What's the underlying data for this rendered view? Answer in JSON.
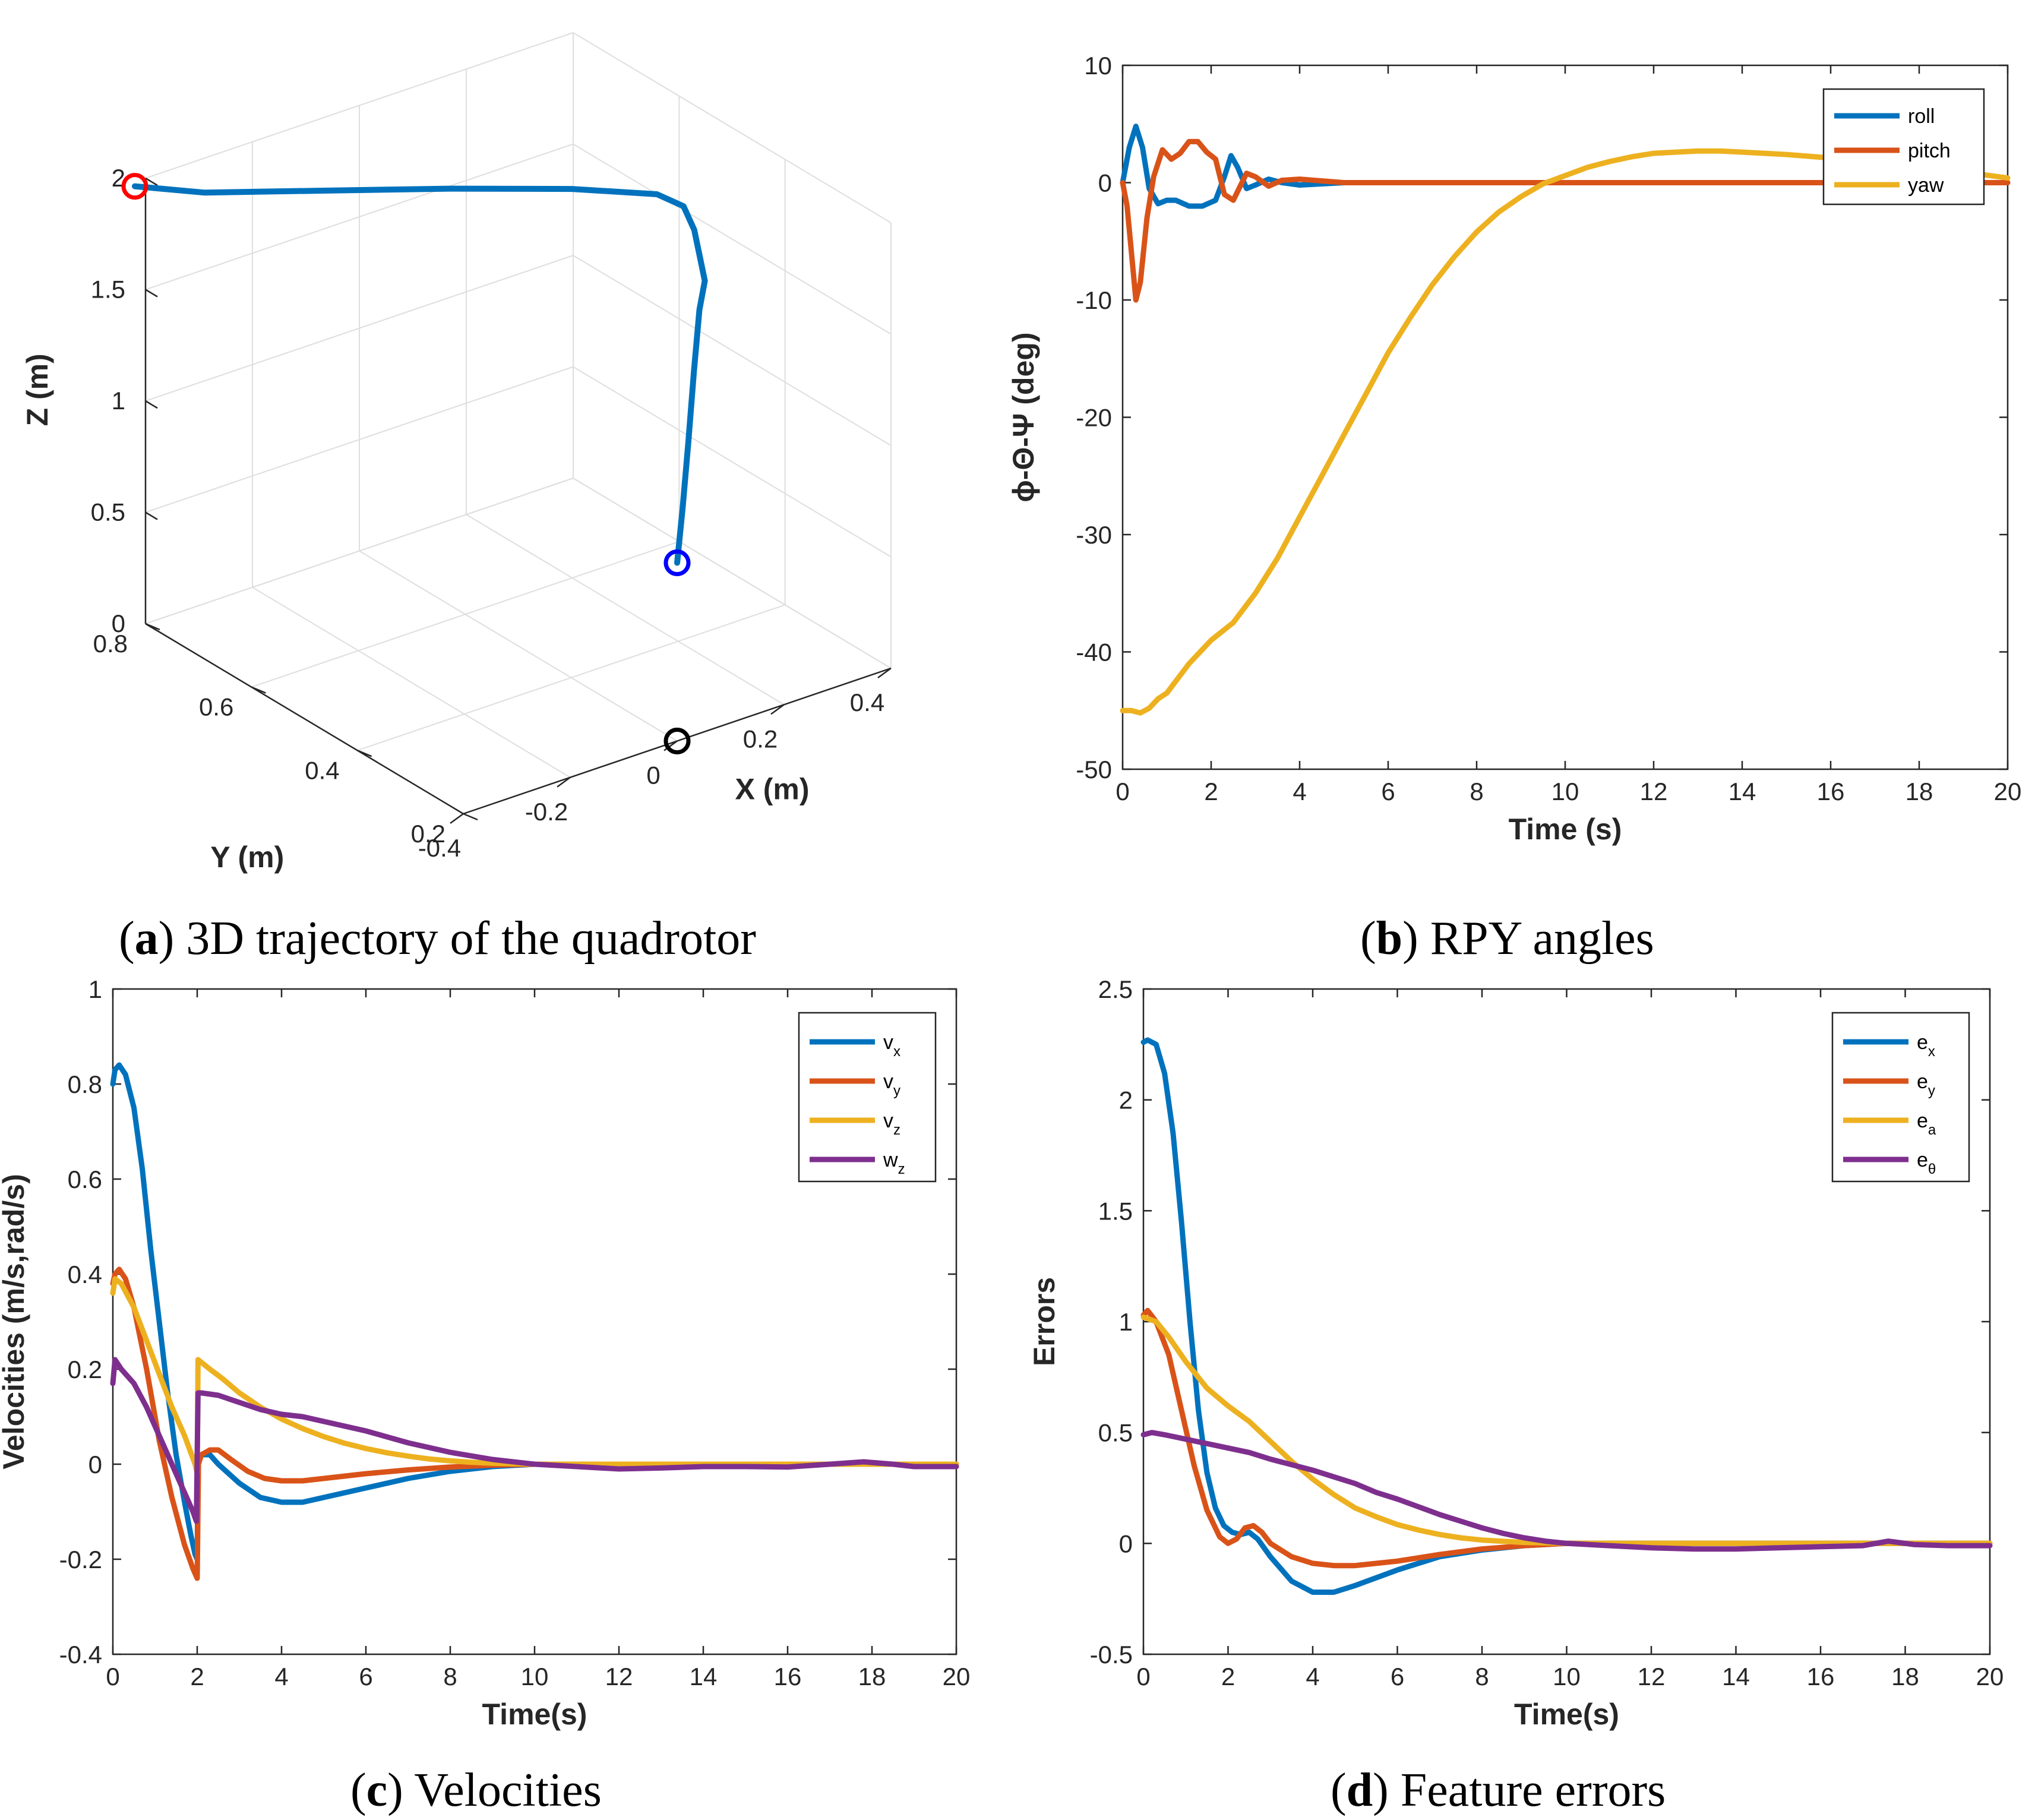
{
  "colors": {
    "blue": "#0072BD",
    "orange": "#D95319",
    "yellow": "#EDB120",
    "purple": "#7E2F8E",
    "red": "#FF0000",
    "darkblue": "#0000FF",
    "black": "#000000"
  },
  "captions": [
    {
      "letter": "a",
      "text": " 3D trajectory of the quadrotor"
    },
    {
      "letter": "b",
      "text": " RPY angles"
    },
    {
      "letter": "c",
      "text": " Velocities"
    },
    {
      "letter": "d",
      "text": " Feature errors"
    }
  ],
  "chart_data": [
    {
      "id": "a",
      "type": "line3d",
      "title": "3D trajectory of the quadrotor",
      "xlabel": "X (m)",
      "ylabel": "Y (m)",
      "zlabel": "Z (m)",
      "xlim": [
        -0.4,
        0.4
      ],
      "ylim": [
        0.2,
        0.8
      ],
      "zlim": [
        0,
        2
      ],
      "xticks": [
        "-0.4",
        "-0.2",
        "0",
        "0.2",
        "0.4"
      ],
      "yticks": [
        "0.2",
        "0.4",
        "0.6",
        "0.8"
      ],
      "zticks": [
        "0",
        "0.5",
        "1",
        "1.5",
        "2"
      ],
      "series": [
        {
          "name": "trajectory",
          "color": "blue",
          "x": [
            0.0,
            0.05,
            0.12,
            0.18,
            0.22,
            0.24,
            0.24,
            0.24,
            0.23,
            0.2,
            0.1,
            -0.05,
            -0.2,
            -0.35,
            -0.42
          ],
          "y": [
            0.2,
            0.24,
            0.3,
            0.35,
            0.38,
            0.39,
            0.4,
            0.41,
            0.42,
            0.44,
            0.5,
            0.58,
            0.66,
            0.74,
            0.8
          ],
          "z": [
            0.8,
            0.95,
            1.1,
            1.3,
            1.5,
            1.6,
            1.7,
            1.8,
            1.9,
            1.95,
            1.97,
            1.98,
            1.98,
            1.98,
            1.98
          ]
        }
      ],
      "markers": [
        {
          "name": "start",
          "color": "red",
          "x": -0.42,
          "y": 0.8,
          "z": 1.98
        },
        {
          "name": "end",
          "color": "darkblue",
          "x": 0.0,
          "y": 0.2,
          "z": 0.8
        },
        {
          "name": "target",
          "color": "black",
          "x": 0.0,
          "y": 0.2,
          "z": 0.0
        }
      ]
    },
    {
      "id": "b",
      "type": "line",
      "title": "RPY angles",
      "xlabel": "Time (s)",
      "ylabel": "ϕ-Θ-Ψ (deg)",
      "xlim": [
        0,
        20
      ],
      "ylim": [
        -50,
        10
      ],
      "xticks": [
        0,
        2,
        4,
        6,
        8,
        10,
        12,
        14,
        16,
        18,
        20
      ],
      "yticks": [
        -50,
        -40,
        -30,
        -20,
        -10,
        0,
        10
      ],
      "legend": "top-right",
      "series": [
        {
          "name": "roll",
          "color": "blue",
          "x": [
            0,
            0.15,
            0.3,
            0.45,
            0.6,
            0.8,
            1.0,
            1.2,
            1.5,
            1.8,
            2.1,
            2.3,
            2.45,
            2.6,
            2.8,
            3.0,
            3.3,
            3.6,
            4.0,
            5.0,
            8.0,
            20
          ],
          "y": [
            0,
            3.0,
            4.8,
            3.0,
            -0.5,
            -1.8,
            -1.5,
            -1.5,
            -2.0,
            -2.0,
            -1.5,
            0.5,
            2.3,
            1.3,
            -0.5,
            -0.2,
            0.3,
            0,
            -0.2,
            0,
            0,
            0
          ]
        },
        {
          "name": "pitch",
          "color": "orange",
          "x": [
            0,
            0.1,
            0.2,
            0.3,
            0.4,
            0.55,
            0.7,
            0.9,
            1.1,
            1.3,
            1.5,
            1.7,
            1.9,
            2.1,
            2.3,
            2.5,
            2.8,
            3.0,
            3.3,
            3.6,
            4.0,
            5.0,
            8.0,
            20
          ],
          "y": [
            0,
            -2.0,
            -6.0,
            -10.0,
            -8.5,
            -3.0,
            0.5,
            2.8,
            2.0,
            2.5,
            3.5,
            3.5,
            2.6,
            2.0,
            -1.0,
            -1.5,
            0.8,
            0.5,
            -0.3,
            0.2,
            0.3,
            0,
            0,
            0
          ]
        },
        {
          "name": "yaw",
          "color": "yellow",
          "x": [
            0,
            0.2,
            0.4,
            0.6,
            0.8,
            1.0,
            1.5,
            2.0,
            2.5,
            3.0,
            3.5,
            4.0,
            4.5,
            5.0,
            5.5,
            6.0,
            6.5,
            7.0,
            7.5,
            8.0,
            8.5,
            9.0,
            9.5,
            10.0,
            10.5,
            11.0,
            11.5,
            12.0,
            12.5,
            13.0,
            13.5,
            14.0,
            15.0,
            16.0,
            17.0,
            18.0,
            19.0,
            20.0
          ],
          "y": [
            -45.0,
            -45.0,
            -45.2,
            -44.8,
            -44.0,
            -43.5,
            -41.0,
            -39.0,
            -37.5,
            -35.0,
            -32.0,
            -28.5,
            -25.0,
            -21.5,
            -18.0,
            -14.5,
            -11.5,
            -8.7,
            -6.3,
            -4.2,
            -2.5,
            -1.2,
            -0.1,
            0.6,
            1.3,
            1.8,
            2.2,
            2.5,
            2.6,
            2.7,
            2.7,
            2.6,
            2.4,
            2.1,
            1.7,
            1.3,
            0.9,
            0.4
          ]
        }
      ]
    },
    {
      "id": "c",
      "type": "line",
      "title": "Velocities",
      "xlabel": "Time(s)",
      "ylabel": "Velocities (m/s,rad/s)",
      "xlim": [
        0,
        20
      ],
      "ylim": [
        -0.4,
        1
      ],
      "xticks": [
        0,
        2,
        4,
        6,
        8,
        10,
        12,
        14,
        16,
        18,
        20
      ],
      "yticks": [
        -0.4,
        -0.2,
        0,
        0.2,
        0.4,
        0.6,
        0.8,
        1
      ],
      "legend": "top-right",
      "series": [
        {
          "name": "v",
          "sub": "x",
          "color": "blue",
          "x": [
            0,
            0.05,
            0.15,
            0.3,
            0.5,
            0.7,
            0.9,
            1.1,
            1.3,
            1.5,
            1.7,
            1.85,
            1.95,
            2.0,
            2.02,
            2.1,
            2.3,
            2.5,
            3.0,
            3.5,
            4.0,
            4.5,
            5.0,
            6.0,
            7.0,
            8.0,
            9.0,
            10.0,
            12.0,
            20.0
          ],
          "y": [
            0.8,
            0.83,
            0.84,
            0.82,
            0.75,
            0.62,
            0.45,
            0.3,
            0.15,
            0.02,
            -0.08,
            -0.15,
            -0.19,
            -0.2,
            0.0,
            0.02,
            0.02,
            0.0,
            -0.04,
            -0.07,
            -0.08,
            -0.08,
            -0.07,
            -0.05,
            -0.03,
            -0.015,
            -0.005,
            0.0,
            0.0,
            0.0
          ]
        },
        {
          "name": "v",
          "sub": "y",
          "color": "orange",
          "x": [
            0,
            0.05,
            0.15,
            0.3,
            0.5,
            0.8,
            1.1,
            1.4,
            1.7,
            1.9,
            2.0,
            2.03,
            2.1,
            2.3,
            2.5,
            2.8,
            3.2,
            3.6,
            4.0,
            4.5,
            5.0,
            6.0,
            7.0,
            8.0,
            9.0,
            10.0,
            20.0
          ],
          "y": [
            0.38,
            0.4,
            0.41,
            0.39,
            0.33,
            0.2,
            0.05,
            -0.07,
            -0.17,
            -0.22,
            -0.24,
            0.0,
            0.02,
            0.03,
            0.03,
            0.01,
            -0.015,
            -0.03,
            -0.035,
            -0.035,
            -0.03,
            -0.02,
            -0.012,
            -0.006,
            -0.002,
            0.0,
            0.0
          ]
        },
        {
          "name": "v",
          "sub": "z",
          "color": "yellow",
          "x": [
            0,
            0.05,
            0.2,
            0.5,
            0.8,
            1.1,
            1.4,
            1.7,
            1.95,
            2.0,
            2.02,
            2.3,
            2.6,
            3.0,
            3.5,
            4.0,
            4.5,
            5.0,
            5.5,
            6.0,
            6.5,
            7.0,
            7.5,
            8.0,
            8.5,
            9.0,
            10.0,
            12.0,
            20.0
          ],
          "y": [
            0.36,
            0.39,
            0.38,
            0.33,
            0.26,
            0.19,
            0.12,
            0.06,
            0.0,
            -0.02,
            0.22,
            0.2,
            0.18,
            0.15,
            0.12,
            0.095,
            0.075,
            0.058,
            0.044,
            0.033,
            0.024,
            0.017,
            0.011,
            0.007,
            0.004,
            0.002,
            0.0,
            0.0,
            0.0
          ]
        },
        {
          "name": "w",
          "sub": "z",
          "color": "purple",
          "x": [
            0,
            0.05,
            0.2,
            0.5,
            0.8,
            1.1,
            1.4,
            1.7,
            1.9,
            1.98,
            2.02,
            2.1,
            2.5,
            3.0,
            3.5,
            4.0,
            4.5,
            5.0,
            6.0,
            7.0,
            8.0,
            9.0,
            10.0,
            11.0,
            12.0,
            13.0,
            14.0,
            15.0,
            16.0,
            17.0,
            17.8,
            18.5,
            19.0,
            20.0
          ],
          "y": [
            0.17,
            0.22,
            0.2,
            0.17,
            0.12,
            0.06,
            0.0,
            -0.06,
            -0.1,
            -0.12,
            0.15,
            0.15,
            0.145,
            0.13,
            0.115,
            0.105,
            0.1,
            0.09,
            0.07,
            0.045,
            0.025,
            0.01,
            0.0,
            -0.005,
            -0.01,
            -0.008,
            -0.005,
            -0.005,
            -0.006,
            0.0,
            0.005,
            0.0,
            -0.005,
            -0.005
          ]
        }
      ]
    },
    {
      "id": "d",
      "type": "line",
      "title": "Feature errors",
      "xlabel": "Time(s)",
      "ylabel": "Errors",
      "xlim": [
        0,
        20
      ],
      "ylim": [
        -0.5,
        2.5
      ],
      "xticks": [
        0,
        2,
        4,
        6,
        8,
        10,
        12,
        14,
        16,
        18,
        20
      ],
      "yticks": [
        -0.5,
        0,
        0.5,
        1,
        1.5,
        2,
        2.5
      ],
      "legend": "top-right",
      "series": [
        {
          "name": "e",
          "sub": "x",
          "color": "blue",
          "x": [
            0,
            0.1,
            0.3,
            0.5,
            0.7,
            0.9,
            1.1,
            1.3,
            1.5,
            1.7,
            1.9,
            2.1,
            2.3,
            2.5,
            2.7,
            3.0,
            3.5,
            4.0,
            4.5,
            5.0,
            6.0,
            7.0,
            8.0,
            9.0,
            10.0,
            12.0,
            20.0
          ],
          "y": [
            2.26,
            2.27,
            2.25,
            2.12,
            1.85,
            1.45,
            1.0,
            0.6,
            0.32,
            0.16,
            0.08,
            0.05,
            0.04,
            0.05,
            0.02,
            -0.06,
            -0.17,
            -0.22,
            -0.22,
            -0.19,
            -0.12,
            -0.06,
            -0.03,
            -0.01,
            0.0,
            0.0,
            0.0
          ]
        },
        {
          "name": "e",
          "sub": "y",
          "color": "orange",
          "x": [
            0,
            0.1,
            0.3,
            0.6,
            0.9,
            1.2,
            1.5,
            1.8,
            2.0,
            2.2,
            2.4,
            2.6,
            2.8,
            3.0,
            3.5,
            4.0,
            4.5,
            5.0,
            6.0,
            7.0,
            8.0,
            9.0,
            10.0,
            20.0
          ],
          "y": [
            1.03,
            1.05,
            1.0,
            0.85,
            0.6,
            0.35,
            0.15,
            0.03,
            0.0,
            0.02,
            0.07,
            0.08,
            0.05,
            0.0,
            -0.06,
            -0.09,
            -0.1,
            -0.1,
            -0.08,
            -0.05,
            -0.025,
            -0.01,
            0.0,
            0.0
          ]
        },
        {
          "name": "e",
          "sub": "a",
          "color": "yellow",
          "x": [
            0,
            0.3,
            0.6,
            1.0,
            1.5,
            2.0,
            2.5,
            3.0,
            3.5,
            4.0,
            4.5,
            5.0,
            5.5,
            6.0,
            6.5,
            7.0,
            7.5,
            8.0,
            9.0,
            10.0,
            12.0,
            20.0
          ],
          "y": [
            1.02,
            1.0,
            0.93,
            0.82,
            0.7,
            0.62,
            0.55,
            0.46,
            0.37,
            0.29,
            0.22,
            0.16,
            0.12,
            0.085,
            0.06,
            0.04,
            0.025,
            0.015,
            0.004,
            0.0,
            0.0,
            0.0
          ]
        },
        {
          "name": "e",
          "sub": "θ",
          "color": "purple",
          "x": [
            0,
            0.2,
            0.5,
            1.0,
            1.5,
            2.0,
            2.5,
            3.0,
            3.5,
            4.0,
            4.5,
            5.0,
            5.5,
            6.0,
            6.5,
            7.0,
            7.5,
            8.0,
            8.5,
            9.0,
            9.5,
            10.0,
            11.0,
            12.0,
            13.0,
            14.0,
            15.0,
            16.0,
            17.0,
            17.6,
            18.2,
            19.0,
            20.0
          ],
          "y": [
            0.49,
            0.5,
            0.49,
            0.47,
            0.45,
            0.43,
            0.41,
            0.38,
            0.355,
            0.33,
            0.3,
            0.27,
            0.23,
            0.2,
            0.165,
            0.13,
            0.1,
            0.07,
            0.045,
            0.025,
            0.01,
            0.0,
            -0.01,
            -0.02,
            -0.025,
            -0.025,
            -0.02,
            -0.015,
            -0.01,
            0.01,
            -0.005,
            -0.01,
            -0.01
          ]
        }
      ]
    }
  ]
}
